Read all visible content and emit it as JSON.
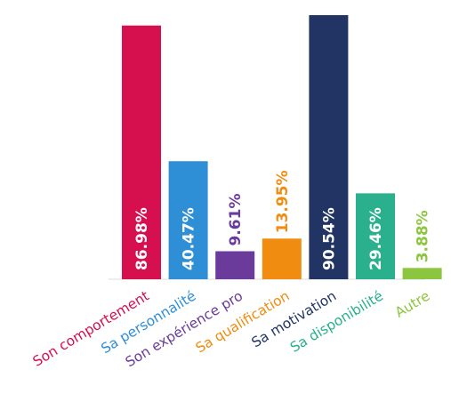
{
  "chart_data": {
    "type": "bar",
    "title": "",
    "xlabel": "",
    "ylabel": "",
    "ylim": [
      0,
      100
    ],
    "grid": false,
    "legend": "none",
    "categories": [
      "Son comportement",
      "Sa personnalité",
      "Son expérience pro",
      "Sa qualification",
      "Sa motivation",
      "Sa disponibilité",
      "Autre"
    ],
    "values": [
      86.98,
      40.47,
      9.61,
      13.95,
      90.54,
      29.46,
      3.88
    ],
    "value_labels": [
      "86.98%",
      "40.47%",
      "9.61%",
      "13.95%",
      "90.54%",
      "29.46%",
      "3.88%"
    ],
    "colors": [
      "#d6104f",
      "#2e8fd6",
      "#6a3b9a",
      "#f08c10",
      "#213463",
      "#2ab08c",
      "#8cc63f"
    ]
  }
}
